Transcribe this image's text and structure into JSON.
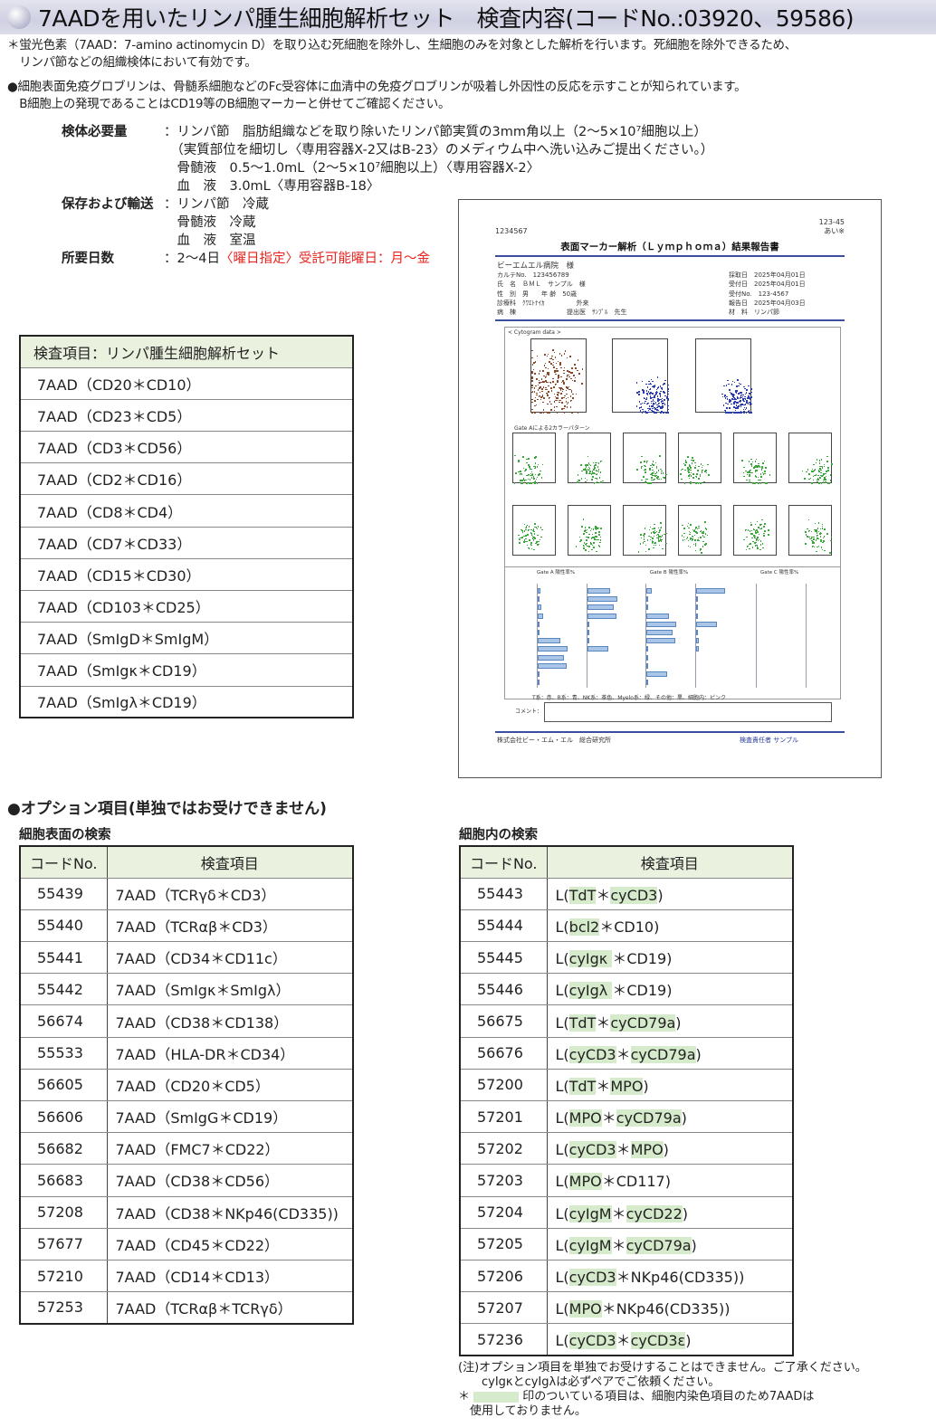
{
  "title": "7AADを用いたリンパ腫生細胞解析セット　検査内容(コードNo.:03920、59586)",
  "intro": [
    "＊蛍光色素（7AAD：7-amino actinomycin D）を取り込む死細胞を除外し、生細胞のみを対象とした解析を行います。死細胞を除外できるため、",
    "　リンパ節などの組織検体において有効です。",
    "●細胞表面免疫グロブリンは、骨髄系細胞などのFc受容体に血清中の免疫グロブリンが吸着し外因性の反応を示すことが知られています。",
    "　B細胞上の発現であることはCD19等のB細胞マーカーと併せてご確認ください。"
  ],
  "specimen": {
    "required_label": "検体必要量",
    "required_lines": [
      "：リンパ節　脂肪組織などを取り除いたリンパ節実質の3mm角以上（2～5×10⁷細胞以上）",
      "　（実質部位を細切し〈専用容器X-2又はB-23〉のメディウム中へ洗い込みご提出ください。）",
      "　骨髄液　0.5～1.0mL（2～5×10⁷細胞以上）〈専用容器X-2〉",
      "　血　液　3.0mL〈専用容器B-18〉"
    ],
    "storage_label": "保存および輸送",
    "storage_lines": [
      "：リンパ節　冷蔵",
      "　骨髄液　冷蔵",
      "　血　液　室温"
    ],
    "days_label": "所要日数",
    "days_value": "：2～4日 ",
    "days_red": "〈曜日指定〉受託可能曜日：月～金"
  },
  "main_table": {
    "header": "検査項目：リンパ腫生細胞解析セット",
    "rows": [
      "7AAD（CD20＊CD10）",
      "7AAD（CD23＊CD5）",
      "7AAD（CD3＊CD56）",
      "7AAD（CD2＊CD16）",
      "7AAD（CD8＊CD4）",
      "7AAD（CD7＊CD33）",
      "7AAD（CD15＊CD30）",
      "7AAD（CD103＊CD25）",
      "7AAD（SmIgD＊SmIgM）",
      "7AAD（SmIgκ＊CD19）",
      "7AAD（SmIgλ＊CD19）"
    ]
  },
  "report": {
    "id": "1234567",
    "corner": "123-45",
    "corner2": "あい※",
    "title": "表面マーカー解析（Ｌｙｍｐｈｏｍａ）結果報告書",
    "hospital": "ビーエムエル病院　様",
    "left_fields": [
      "カルテNo.　123456789",
      "氏　名　ＢＭＬ　サンプル　様",
      "性　別　男　　年 齢　50歳",
      "診療科　ｸﾜｴﾄﾅｲｶ　　　　　外来",
      "病　棟　　　　　　　　提出医　ｻﾝﾌﾟﾙ　先生"
    ],
    "right_fields": [
      "採取日　2025年04月01日",
      "受付日　2025年04月01日",
      "受付No.　123-4567",
      "報告日　2025年04月03日",
      "材　料　リンパ節"
    ],
    "cytogram_label": "< Cytogram data >",
    "gate_a": "Gate Aによる2カラーパターン",
    "bar_headers": [
      "Gate A 陽性率%",
      "Gate B 陽性率%",
      "Gate C 陽性率%"
    ],
    "legend": "T系：赤、B系：青、NK系：茶色、Myelo系：緑、その他：黒、細胞内：ピンク",
    "comment_label": "コメント：",
    "company": "株式会社ビー・エム・エル　総合研究所",
    "responsible": "検査責任者 サンプル"
  },
  "options": {
    "heading": "●オプション項目(単独ではお受けできません)",
    "surface": {
      "subheading": "細胞表面の検索",
      "headers": [
        "コードNo.",
        "検査項目"
      ],
      "rows": [
        {
          "code": "55439",
          "seg": [
            {
              "t": "7AAD（TCRγδ＊CD3）"
            }
          ]
        },
        {
          "code": "55440",
          "seg": [
            {
              "t": "7AAD（TCRαβ＊CD3）"
            }
          ]
        },
        {
          "code": "55441",
          "seg": [
            {
              "t": "7AAD（CD34＊CD11c）"
            }
          ]
        },
        {
          "code": "55442",
          "seg": [
            {
              "t": "7AAD（SmIgκ＊SmIgλ）"
            }
          ]
        },
        {
          "code": "56674",
          "seg": [
            {
              "t": "7AAD（CD38＊CD138）"
            }
          ]
        },
        {
          "code": "55533",
          "seg": [
            {
              "t": "7AAD（HLA-DR＊CD34）"
            }
          ]
        },
        {
          "code": "56605",
          "seg": [
            {
              "t": "7AAD（CD20＊CD5）"
            }
          ]
        },
        {
          "code": "56606",
          "seg": [
            {
              "t": "7AAD（SmIgG＊CD19）"
            }
          ]
        },
        {
          "code": "56682",
          "seg": [
            {
              "t": "7AAD（FMC7＊CD22）"
            }
          ]
        },
        {
          "code": "56683",
          "seg": [
            {
              "t": "7AAD（CD38＊CD56）"
            }
          ]
        },
        {
          "code": "57208",
          "seg": [
            {
              "t": "7AAD（CD38＊NKp46(CD335))"
            }
          ]
        },
        {
          "code": "57677",
          "seg": [
            {
              "t": "7AAD（CD45＊CD22）"
            }
          ]
        },
        {
          "code": "57210",
          "seg": [
            {
              "t": "7AAD（CD14＊CD13）"
            }
          ]
        },
        {
          "code": "57253",
          "seg": [
            {
              "t": "7AAD（TCRαβ＊TCRγδ）"
            }
          ]
        }
      ]
    },
    "intracellular": {
      "subheading": "細胞内の検索",
      "headers": [
        "コードNo.",
        "検査項目"
      ],
      "rows": [
        {
          "code": "55443",
          "seg": [
            {
              "t": "L("
            },
            {
              "t": "TdT",
              "h": 1
            },
            {
              "t": "＊"
            },
            {
              "t": "cyCD3",
              "h": 1
            },
            {
              "t": ")"
            }
          ]
        },
        {
          "code": "55444",
          "seg": [
            {
              "t": "L("
            },
            {
              "t": "bcl2",
              "h": 1
            },
            {
              "t": "＊CD10)"
            }
          ]
        },
        {
          "code": "55445",
          "seg": [
            {
              "t": "L("
            },
            {
              "t": "cyIgκ ",
              "h": 1
            },
            {
              "t": "＊CD19)"
            }
          ]
        },
        {
          "code": "55446",
          "seg": [
            {
              "t": "L("
            },
            {
              "t": "cyIgλ ",
              "h": 1
            },
            {
              "t": "＊CD19)"
            }
          ]
        },
        {
          "code": "56675",
          "seg": [
            {
              "t": "L("
            },
            {
              "t": "TdT",
              "h": 1
            },
            {
              "t": "＊"
            },
            {
              "t": "cyCD79a",
              "h": 1
            },
            {
              "t": ")"
            }
          ]
        },
        {
          "code": "56676",
          "seg": [
            {
              "t": "L("
            },
            {
              "t": "cyCD3",
              "h": 1
            },
            {
              "t": "＊"
            },
            {
              "t": "cyCD79a",
              "h": 1
            },
            {
              "t": ")"
            }
          ]
        },
        {
          "code": "57200",
          "seg": [
            {
              "t": "L("
            },
            {
              "t": "TdT",
              "h": 1
            },
            {
              "t": "＊"
            },
            {
              "t": "MPO",
              "h": 1
            },
            {
              "t": ")"
            }
          ]
        },
        {
          "code": "57201",
          "seg": [
            {
              "t": "L("
            },
            {
              "t": "MPO",
              "h": 1
            },
            {
              "t": "＊"
            },
            {
              "t": "cyCD79a",
              "h": 1
            },
            {
              "t": ")"
            }
          ]
        },
        {
          "code": "57202",
          "seg": [
            {
              "t": "L("
            },
            {
              "t": "cyCD3",
              "h": 1
            },
            {
              "t": "＊"
            },
            {
              "t": "MPO",
              "h": 1
            },
            {
              "t": ")"
            }
          ]
        },
        {
          "code": "57203",
          "seg": [
            {
              "t": "L("
            },
            {
              "t": "MPO",
              "h": 1
            },
            {
              "t": "＊CD117)"
            }
          ]
        },
        {
          "code": "57204",
          "seg": [
            {
              "t": "L("
            },
            {
              "t": "cyIgM",
              "h": 1
            },
            {
              "t": "＊"
            },
            {
              "t": "cyCD22",
              "h": 1
            },
            {
              "t": ")"
            }
          ]
        },
        {
          "code": "57205",
          "seg": [
            {
              "t": "L("
            },
            {
              "t": "cyIgM",
              "h": 1
            },
            {
              "t": "＊"
            },
            {
              "t": "cyCD79a",
              "h": 1
            },
            {
              "t": ")"
            }
          ]
        },
        {
          "code": "57206",
          "seg": [
            {
              "t": "L("
            },
            {
              "t": "cyCD3",
              "h": 1
            },
            {
              "t": "＊NKp46(CD335))"
            }
          ]
        },
        {
          "code": "57207",
          "seg": [
            {
              "t": "L("
            },
            {
              "t": "MPO",
              "h": 1
            },
            {
              "t": "＊NKp46(CD335))"
            }
          ]
        },
        {
          "code": "57236",
          "seg": [
            {
              "t": "L("
            },
            {
              "t": "cyCD3",
              "h": 1
            },
            {
              "t": "＊"
            },
            {
              "t": "cyCD3ε",
              "h": 1
            },
            {
              "t": ")"
            }
          ]
        }
      ]
    }
  },
  "notes": {
    "line1": "(注)オプション項目を単独でお受けすることはできません。ご了承ください。",
    "line2": "　　cyIgκとcyIgλは必ずペアでご依頼ください。",
    "line3a": "＊",
    "line3b": "印のついている項目は、細胞内染色項目のため7AADは",
    "line4": "　使用しておりません。"
  },
  "colors": {
    "highlight": "#d6ebcc",
    "header_bg": "#eaf1de",
    "red": "#e8231e",
    "report_blue": "#3b4ea0"
  }
}
